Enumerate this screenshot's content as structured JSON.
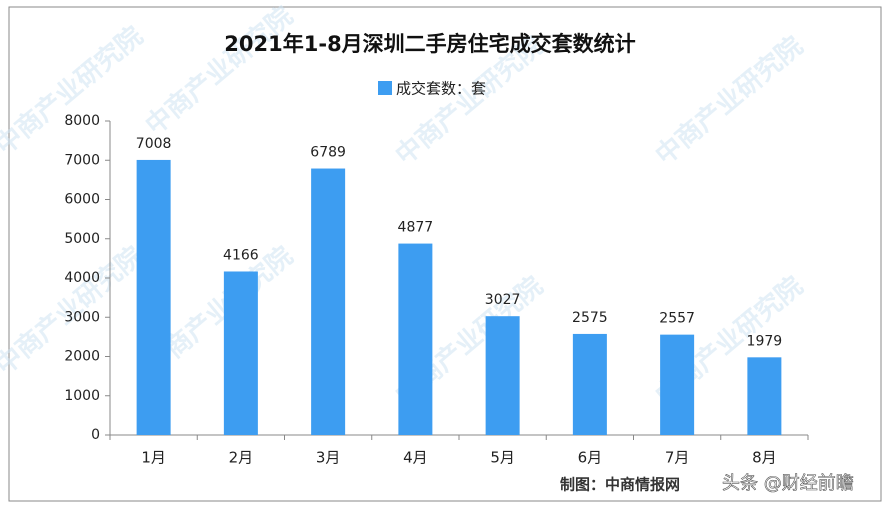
{
  "chart_data": {
    "type": "bar",
    "title": "2021年1-8月深圳二手房住宅成交套数统计",
    "categories": [
      "1月",
      "2月",
      "3月",
      "4月",
      "5月",
      "6月",
      "7月",
      "8月"
    ],
    "series": [
      {
        "name": "成交套数：套",
        "color": "#3d9df1",
        "values": [
          7008,
          4166,
          6789,
          4877,
          3027,
          2575,
          2557,
          1979
        ]
      }
    ],
    "ylim": [
      0,
      8000
    ],
    "yticks": [
      0,
      1000,
      2000,
      3000,
      4000,
      5000,
      6000,
      7000,
      8000
    ],
    "grid": false,
    "source": "制图：中商情报网",
    "watermark": "中商产业研究院",
    "credit": "头条 @财经前瞻"
  }
}
